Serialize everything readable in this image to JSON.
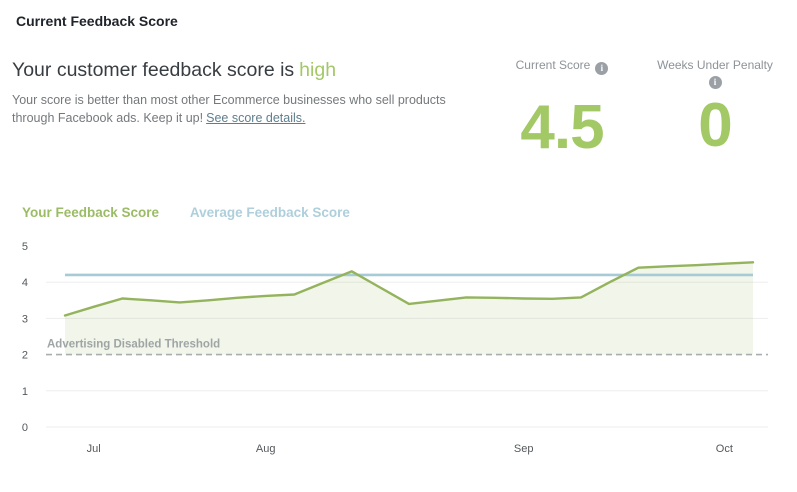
{
  "page": {
    "title": "Current Feedback Score"
  },
  "summary": {
    "headline_prefix": "Your customer feedback score is",
    "headline_highlight": "high",
    "description": "Your score is better than most other Ecommerce businesses who sell products through Facebook ads. Keep it up!",
    "link_text": "See score details."
  },
  "stats": {
    "current_score": {
      "label": "Current Score",
      "value": "4.5"
    },
    "weeks_under_penalty": {
      "label": "Weeks Under Penalty",
      "value": "0"
    }
  },
  "icons": {
    "info": "i"
  },
  "colors": {
    "green_text": "#a3c866",
    "green_line": "#94b35d",
    "green_fill": "#94b35d",
    "blue_line": "#a6cbd7",
    "legend_green": "#9bbc66",
    "legend_blue": "#aecfdb",
    "grid": "#ededed",
    "threshold": "#a9aeae",
    "threshold_label": "#9fa5a5",
    "axis_text": "#55595c",
    "link": "#5f7e8d",
    "title_text": "#20252b",
    "headline_text": "#383d42",
    "body_text": "#75797c",
    "stat_label": "#8d9398",
    "info_icon_bg": "#9aa0a5"
  },
  "chart_data": {
    "type": "line",
    "title": "",
    "xlabel": "",
    "ylabel": "",
    "x_axis": {
      "unit": "week",
      "tick_labels": [
        {
          "label": "Jul",
          "week": 1
        },
        {
          "label": "Aug",
          "week": 7
        },
        {
          "label": "Sep",
          "week": 16
        },
        {
          "label": "Oct",
          "week": 23
        }
      ]
    },
    "y_axis": {
      "min": 0,
      "max": 5,
      "ticks": [
        5,
        4,
        3,
        2,
        1,
        0
      ],
      "gridline_values": [
        4,
        3,
        1,
        0
      ]
    },
    "series": [
      {
        "name": "Your Feedback Score",
        "type": "line-with-area",
        "values": [
          3.08,
          3.32,
          3.55,
          3.5,
          3.44,
          3.5,
          3.57,
          3.62,
          3.66,
          3.98,
          4.3,
          3.85,
          3.4,
          3.49,
          3.58,
          3.57,
          3.55,
          3.54,
          3.58,
          4.0,
          4.4,
          4.44,
          4.47,
          4.51,
          4.55
        ]
      },
      {
        "name": "Average Feedback Score",
        "type": "constant-line",
        "value": 4.2
      }
    ],
    "threshold": {
      "value": 2,
      "label": "Advertising Disabled Threshold"
    },
    "area_fill_baseline": 2,
    "legend_position": "top-left",
    "grid": "horizontal-only"
  }
}
